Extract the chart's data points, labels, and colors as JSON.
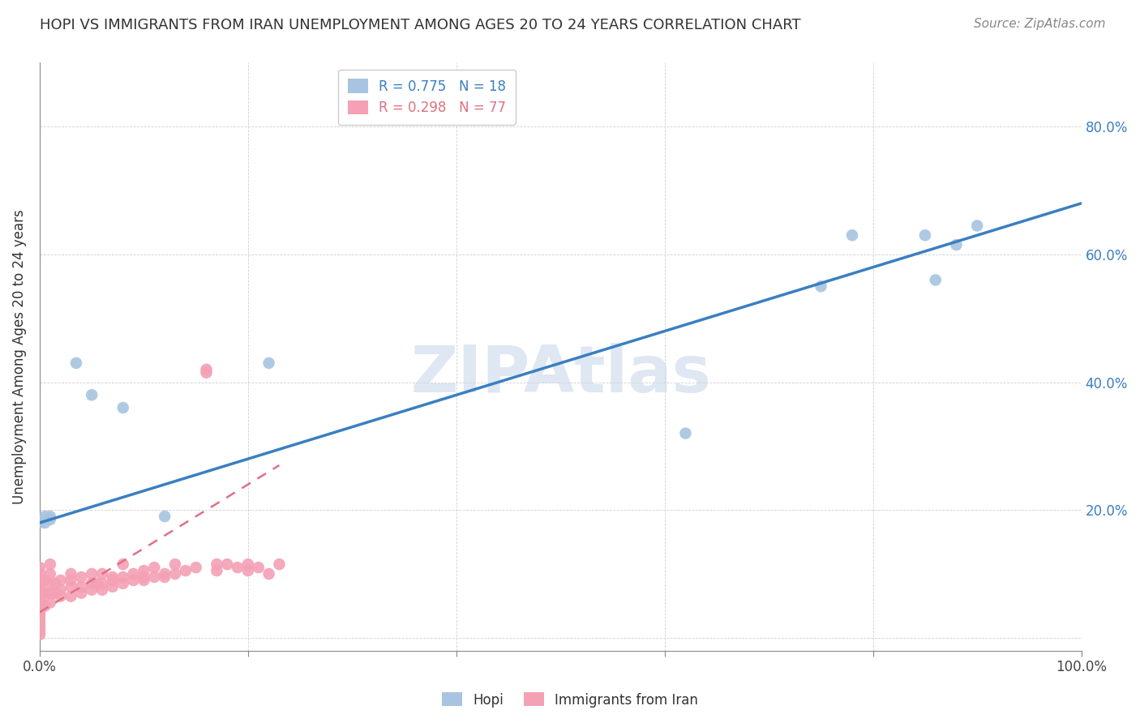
{
  "title": "HOPI VS IMMIGRANTS FROM IRAN UNEMPLOYMENT AMONG AGES 20 TO 24 YEARS CORRELATION CHART",
  "source": "Source: ZipAtlas.com",
  "ylabel": "Unemployment Among Ages 20 to 24 years",
  "xlim": [
    0,
    1.0
  ],
  "ylim": [
    -0.02,
    0.9
  ],
  "legend_blue_r": "R = 0.775",
  "legend_blue_n": "N = 18",
  "legend_pink_r": "R = 0.298",
  "legend_pink_n": "N = 77",
  "hopi_color": "#a8c4e0",
  "iran_color": "#f4a0b5",
  "blue_line_color": "#3a7fc1",
  "pink_line_color": "#e07080",
  "watermark": "ZIPAtlas",
  "watermark_color": "#c8d8ea",
  "blue_line_x0": 0.0,
  "blue_line_y0": 0.18,
  "blue_line_x1": 1.0,
  "blue_line_y1": 0.68,
  "pink_line_x0": 0.0,
  "pink_line_y0": 0.04,
  "pink_line_x1": 0.23,
  "pink_line_y1": 0.27,
  "hopi_x": [
    0.005,
    0.01,
    0.01,
    0.0,
    0.0,
    0.005,
    0.05,
    0.08,
    0.22,
    0.62,
    0.75,
    0.78,
    0.85,
    0.86,
    0.88,
    0.9,
    0.035,
    0.12
  ],
  "hopi_y": [
    0.19,
    0.19,
    0.185,
    0.185,
    0.18,
    0.18,
    0.38,
    0.36,
    0.43,
    0.32,
    0.55,
    0.63,
    0.63,
    0.56,
    0.615,
    0.645,
    0.43,
    0.19
  ],
  "iran_x": [
    0.0,
    0.0,
    0.0,
    0.0,
    0.0,
    0.0,
    0.0,
    0.0,
    0.0,
    0.0,
    0.0,
    0.0,
    0.0,
    0.0,
    0.0,
    0.0,
    0.0,
    0.0,
    0.0,
    0.0,
    0.005,
    0.005,
    0.005,
    0.01,
    0.01,
    0.01,
    0.01,
    0.01,
    0.015,
    0.015,
    0.02,
    0.02,
    0.02,
    0.03,
    0.03,
    0.03,
    0.03,
    0.04,
    0.04,
    0.04,
    0.05,
    0.05,
    0.05,
    0.055,
    0.06,
    0.06,
    0.06,
    0.07,
    0.07,
    0.07,
    0.08,
    0.08,
    0.08,
    0.09,
    0.09,
    0.1,
    0.1,
    0.1,
    0.11,
    0.11,
    0.12,
    0.12,
    0.13,
    0.13,
    0.14,
    0.15,
    0.16,
    0.16,
    0.17,
    0.17,
    0.18,
    0.19,
    0.2,
    0.2,
    0.21,
    0.22,
    0.23
  ],
  "iran_y": [
    0.005,
    0.01,
    0.015,
    0.02,
    0.025,
    0.03,
    0.035,
    0.04,
    0.045,
    0.05,
    0.055,
    0.06,
    0.065,
    0.07,
    0.075,
    0.08,
    0.085,
    0.09,
    0.1,
    0.11,
    0.05,
    0.07,
    0.09,
    0.055,
    0.07,
    0.085,
    0.1,
    0.115,
    0.07,
    0.085,
    0.065,
    0.075,
    0.09,
    0.065,
    0.08,
    0.09,
    0.1,
    0.07,
    0.08,
    0.095,
    0.075,
    0.085,
    0.1,
    0.085,
    0.075,
    0.085,
    0.1,
    0.08,
    0.09,
    0.095,
    0.085,
    0.095,
    0.115,
    0.09,
    0.1,
    0.09,
    0.095,
    0.105,
    0.095,
    0.11,
    0.095,
    0.1,
    0.1,
    0.115,
    0.105,
    0.11,
    0.42,
    0.415,
    0.105,
    0.115,
    0.115,
    0.11,
    0.105,
    0.115,
    0.11,
    0.1,
    0.115
  ]
}
